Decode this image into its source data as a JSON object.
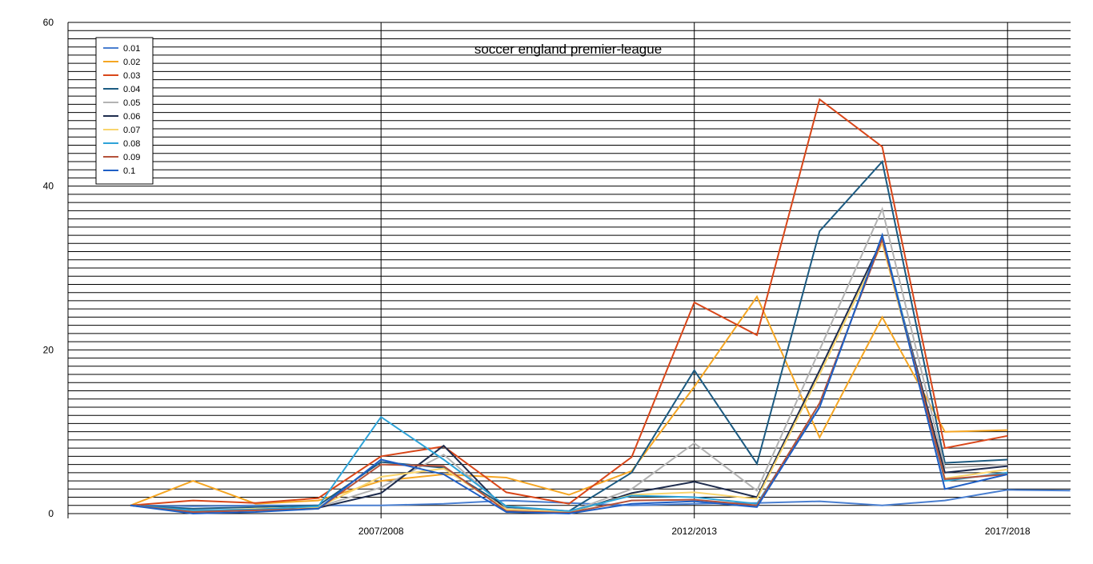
{
  "chart_data": {
    "type": "line",
    "title": "soccer  england  premier-league",
    "xlabel": "",
    "ylabel": "",
    "ylim": [
      0,
      60
    ],
    "yticks": [
      0,
      20,
      40,
      60
    ],
    "x_tick_labels": [
      {
        "index": 4,
        "label": "2007/2008"
      },
      {
        "index": 9,
        "label": "2012/2013"
      },
      {
        "index": 14,
        "label": "2017/2018"
      }
    ],
    "minor_gridlines": true,
    "legend_position": "top-left",
    "series": [
      {
        "name": "0.01",
        "color": "#4a7fd0",
        "values": [
          1.0,
          0.9,
          1.0,
          1.0,
          1.0,
          1.2,
          1.6,
          1.3,
          1.0,
          1.2,
          1.3,
          1.5,
          1.0,
          1.6,
          2.9,
          2.8
        ]
      },
      {
        "name": "0.02",
        "color": "#f5a623",
        "values": [
          1.0,
          4.0,
          1.2,
          1.6,
          4.0,
          4.8,
          4.4,
          2.3,
          5.2,
          15.5,
          26.5,
          9.3,
          24.0,
          10.0,
          10.2
        ]
      },
      {
        "name": "0.03",
        "color": "#d9471a",
        "values": [
          1.0,
          1.6,
          1.3,
          1.9,
          7.0,
          8.2,
          2.6,
          1.2,
          6.9,
          25.8,
          21.8,
          50.6,
          44.8,
          8.0,
          9.5
        ]
      },
      {
        "name": "0.04",
        "color": "#1c5b82",
        "values": [
          1.0,
          0.6,
          0.8,
          1.0,
          6.3,
          5.6,
          0.8,
          0.3,
          5.0,
          17.5,
          6.1,
          34.5,
          43.0,
          6.2,
          6.6
        ]
      },
      {
        "name": "0.05",
        "color": "#b3b3b3",
        "values": [
          1.0,
          0.3,
          0.5,
          0.8,
          3.2,
          7.2,
          0.6,
          0.2,
          3.0,
          8.6,
          2.8,
          20.0,
          37.2,
          5.6,
          6.0
        ]
      },
      {
        "name": "0.06",
        "color": "#1f2d4e",
        "values": [
          1.0,
          0.2,
          0.4,
          0.7,
          2.5,
          8.3,
          0.4,
          0.1,
          2.5,
          3.9,
          2.0,
          17.5,
          33.5,
          5.0,
          5.8
        ]
      },
      {
        "name": "0.07",
        "color": "#f9d56e",
        "values": [
          1.0,
          0.3,
          0.6,
          0.8,
          4.5,
          5.5,
          0.5,
          0.2,
          2.3,
          2.6,
          1.8,
          17.0,
          33.0,
          4.3,
          5.4
        ]
      },
      {
        "name": "0.08",
        "color": "#2ea3d8",
        "values": [
          1.0,
          0.4,
          0.5,
          0.9,
          11.8,
          6.6,
          0.9,
          0.3,
          2.2,
          2.0,
          1.2,
          13.0,
          34.0,
          4.0,
          5.0
        ]
      },
      {
        "name": "0.09",
        "color": "#b5523b",
        "values": [
          1.0,
          0.2,
          0.4,
          0.6,
          6.0,
          5.8,
          0.3,
          0.1,
          1.6,
          1.7,
          1.0,
          13.5,
          33.5,
          4.2,
          4.8
        ]
      },
      {
        "name": "0.1",
        "color": "#1f5fc5",
        "values": [
          1.0,
          0.0,
          0.2,
          0.6,
          6.6,
          4.8,
          0.2,
          0.0,
          1.2,
          1.5,
          0.8,
          13.0,
          34.0,
          3.0,
          4.8
        ]
      }
    ]
  }
}
